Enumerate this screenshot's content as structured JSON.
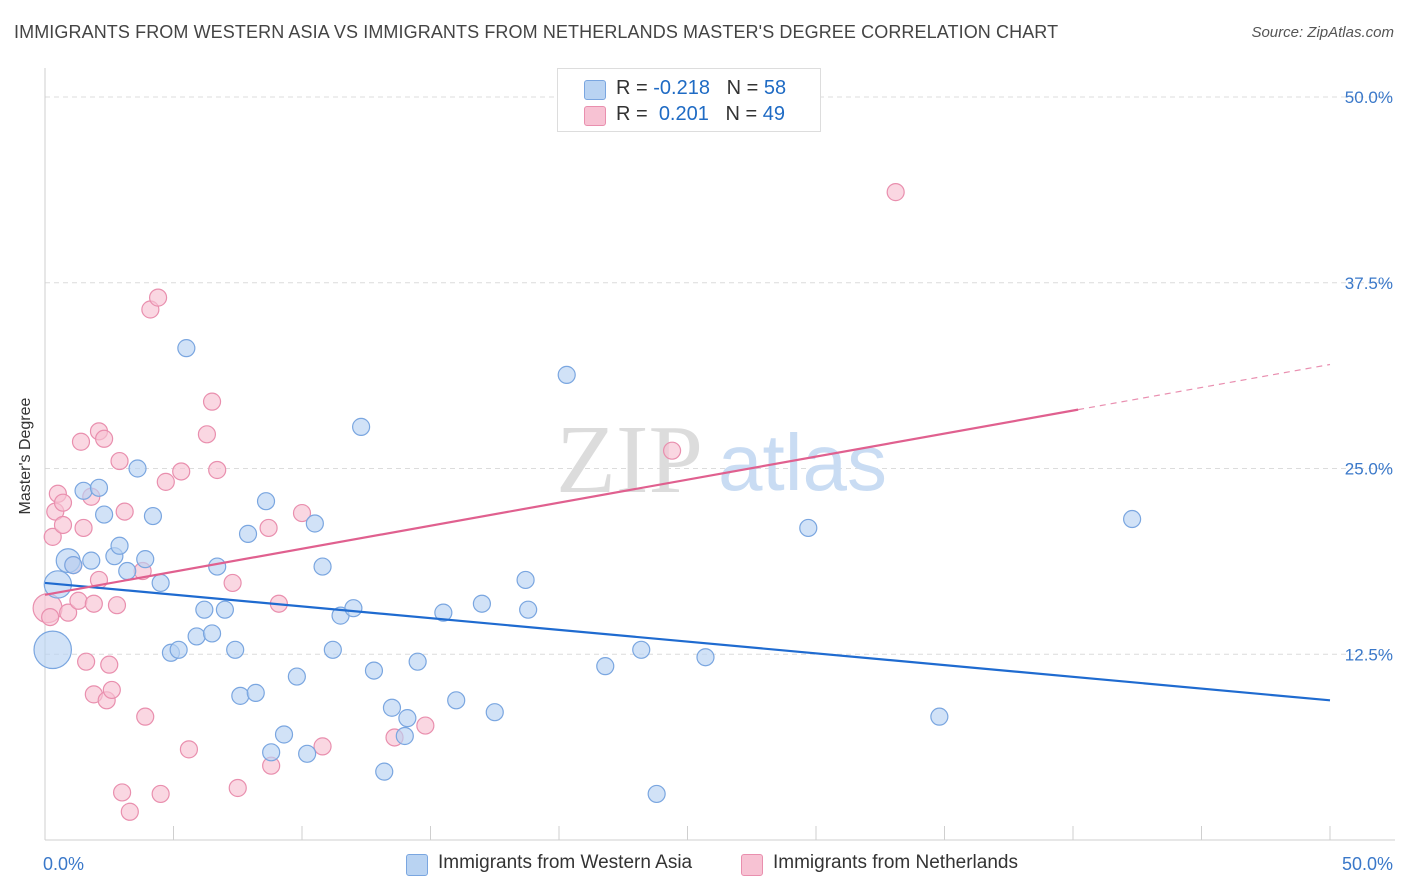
{
  "title": "IMMIGRANTS FROM WESTERN ASIA VS IMMIGRANTS FROM NETHERLANDS MASTER'S DEGREE CORRELATION CHART",
  "source": "Source: ZipAtlas.com",
  "watermark": {
    "zip": "ZIP",
    "atlas": "atlas"
  },
  "legend": {
    "rows": [
      {
        "r_label": "R =",
        "r_value": "-0.218",
        "n_label": "N =",
        "n_value": "58"
      },
      {
        "r_label": "R =",
        "r_value": "0.201",
        "n_label": "N =",
        "n_value": "49"
      }
    ]
  },
  "colors": {
    "blue_fill": "#b9d3f2",
    "blue_stroke": "#7aa6e0",
    "blue_line": "#1f6bd0",
    "pink_fill": "#f7c2d3",
    "pink_stroke": "#e98fae",
    "pink_line": "#e0608f",
    "tick_text": "#3a78c9",
    "grid": "#dcdcdc"
  },
  "chart_data": {
    "type": "scatter",
    "title": "IMMIGRANTS FROM WESTERN ASIA VS IMMIGRANTS FROM NETHERLANDS MASTER'S DEGREE CORRELATION CHART",
    "xlabel": "",
    "ylabel": "Master's Degree",
    "xlim": [
      0,
      50
    ],
    "ylim": [
      0,
      50
    ],
    "x_tick_labels": [
      "0.0%",
      "50.0%"
    ],
    "y_tick_labels": [
      "12.5%",
      "25.0%",
      "37.5%",
      "50.0%"
    ],
    "y_ticks": [
      12.5,
      25.0,
      37.5,
      50.0
    ],
    "grid": true,
    "legend_position": "top-center",
    "series": [
      {
        "name": "Immigrants from Western Asia",
        "color": "#b9d3f2",
        "R": -0.218,
        "N": 58,
        "trend": {
          "x": [
            0,
            50
          ],
          "y": [
            17.3,
            9.4
          ],
          "solid_to": 50
        },
        "points": [
          {
            "x": 0.3,
            "y": 12.8,
            "s": 2.2
          },
          {
            "x": 0.5,
            "y": 17.2,
            "s": 1.6
          },
          {
            "x": 0.9,
            "y": 18.8,
            "s": 1.4
          },
          {
            "x": 1.1,
            "y": 18.5
          },
          {
            "x": 1.5,
            "y": 23.5
          },
          {
            "x": 1.8,
            "y": 18.8
          },
          {
            "x": 2.1,
            "y": 23.7
          },
          {
            "x": 2.3,
            "y": 21.9
          },
          {
            "x": 2.7,
            "y": 19.1
          },
          {
            "x": 2.9,
            "y": 19.8
          },
          {
            "x": 3.2,
            "y": 18.1
          },
          {
            "x": 3.6,
            "y": 25.0
          },
          {
            "x": 3.9,
            "y": 18.9
          },
          {
            "x": 4.2,
            "y": 21.8
          },
          {
            "x": 4.5,
            "y": 17.3
          },
          {
            "x": 4.9,
            "y": 12.6
          },
          {
            "x": 5.2,
            "y": 12.8
          },
          {
            "x": 5.5,
            "y": 33.1
          },
          {
            "x": 5.9,
            "y": 13.7
          },
          {
            "x": 6.2,
            "y": 15.5
          },
          {
            "x": 6.5,
            "y": 13.9
          },
          {
            "x": 6.7,
            "y": 18.4
          },
          {
            "x": 7.0,
            "y": 15.5
          },
          {
            "x": 7.4,
            "y": 12.8
          },
          {
            "x": 7.6,
            "y": 9.7
          },
          {
            "x": 7.9,
            "y": 20.6
          },
          {
            "x": 8.2,
            "y": 9.9
          },
          {
            "x": 8.6,
            "y": 22.8
          },
          {
            "x": 8.8,
            "y": 5.9
          },
          {
            "x": 9.3,
            "y": 7.1
          },
          {
            "x": 9.8,
            "y": 11.0
          },
          {
            "x": 10.2,
            "y": 5.8
          },
          {
            "x": 10.5,
            "y": 21.3
          },
          {
            "x": 10.8,
            "y": 18.4
          },
          {
            "x": 11.2,
            "y": 12.8
          },
          {
            "x": 11.5,
            "y": 15.1
          },
          {
            "x": 12.0,
            "y": 15.6
          },
          {
            "x": 12.3,
            "y": 27.8
          },
          {
            "x": 12.8,
            "y": 11.4
          },
          {
            "x": 13.2,
            "y": 4.6
          },
          {
            "x": 13.5,
            "y": 8.9
          },
          {
            "x": 14.0,
            "y": 7.0
          },
          {
            "x": 14.1,
            "y": 8.2
          },
          {
            "x": 14.5,
            "y": 12.0
          },
          {
            "x": 15.5,
            "y": 15.3
          },
          {
            "x": 16.0,
            "y": 9.4
          },
          {
            "x": 17.0,
            "y": 15.9
          },
          {
            "x": 17.5,
            "y": 8.6
          },
          {
            "x": 18.7,
            "y": 17.5
          },
          {
            "x": 18.8,
            "y": 15.5
          },
          {
            "x": 20.3,
            "y": 31.3
          },
          {
            "x": 21.8,
            "y": 11.7
          },
          {
            "x": 23.8,
            "y": 3.1
          },
          {
            "x": 23.2,
            "y": 12.8
          },
          {
            "x": 25.7,
            "y": 12.3
          },
          {
            "x": 29.7,
            "y": 21.0
          },
          {
            "x": 34.8,
            "y": 8.3
          },
          {
            "x": 42.3,
            "y": 21.6
          }
        ]
      },
      {
        "name": "Immigrants from Netherlands",
        "color": "#f7c2d3",
        "R": 0.201,
        "N": 49,
        "trend": {
          "x": [
            0,
            50
          ],
          "y": [
            16.5,
            32.0
          ],
          "solid_to": 40.2
        },
        "points": [
          {
            "x": 0.1,
            "y": 15.6,
            "s": 1.7
          },
          {
            "x": 0.3,
            "y": 20.4
          },
          {
            "x": 0.4,
            "y": 22.1
          },
          {
            "x": 0.5,
            "y": 23.3
          },
          {
            "x": 0.7,
            "y": 21.2
          },
          {
            "x": 0.7,
            "y": 22.7
          },
          {
            "x": 0.9,
            "y": 15.3
          },
          {
            "x": 1.1,
            "y": 18.5
          },
          {
            "x": 1.3,
            "y": 16.1
          },
          {
            "x": 1.4,
            "y": 26.8
          },
          {
            "x": 1.5,
            "y": 21.0
          },
          {
            "x": 1.6,
            "y": 12.0
          },
          {
            "x": 1.8,
            "y": 23.1
          },
          {
            "x": 1.9,
            "y": 15.9
          },
          {
            "x": 1.9,
            "y": 9.8
          },
          {
            "x": 2.1,
            "y": 17.5
          },
          {
            "x": 2.1,
            "y": 27.5
          },
          {
            "x": 2.3,
            "y": 27.0
          },
          {
            "x": 2.4,
            "y": 9.4
          },
          {
            "x": 2.5,
            "y": 11.8
          },
          {
            "x": 2.6,
            "y": 10.1
          },
          {
            "x": 2.8,
            "y": 15.8
          },
          {
            "x": 2.9,
            "y": 25.5
          },
          {
            "x": 3.0,
            "y": 3.2
          },
          {
            "x": 3.1,
            "y": 22.1
          },
          {
            "x": 3.3,
            "y": 1.9
          },
          {
            "x": 3.8,
            "y": 18.1
          },
          {
            "x": 3.9,
            "y": 8.3
          },
          {
            "x": 4.1,
            "y": 35.7
          },
          {
            "x": 4.4,
            "y": 36.5
          },
          {
            "x": 4.5,
            "y": 3.1
          },
          {
            "x": 4.7,
            "y": 24.1
          },
          {
            "x": 5.3,
            "y": 24.8
          },
          {
            "x": 5.6,
            "y": 6.1
          },
          {
            "x": 6.3,
            "y": 27.3
          },
          {
            "x": 6.5,
            "y": 29.5
          },
          {
            "x": 6.7,
            "y": 24.9
          },
          {
            "x": 7.3,
            "y": 17.3
          },
          {
            "x": 7.5,
            "y": 3.5
          },
          {
            "x": 8.7,
            "y": 21.0
          },
          {
            "x": 8.8,
            "y": 5.0
          },
          {
            "x": 9.1,
            "y": 15.9
          },
          {
            "x": 10.0,
            "y": 22.0
          },
          {
            "x": 10.8,
            "y": 6.3
          },
          {
            "x": 13.6,
            "y": 6.9
          },
          {
            "x": 14.8,
            "y": 7.7
          },
          {
            "x": 24.4,
            "y": 26.2
          },
          {
            "x": 33.1,
            "y": 43.6
          },
          {
            "x": 0.2,
            "y": 15.0
          }
        ]
      }
    ]
  }
}
